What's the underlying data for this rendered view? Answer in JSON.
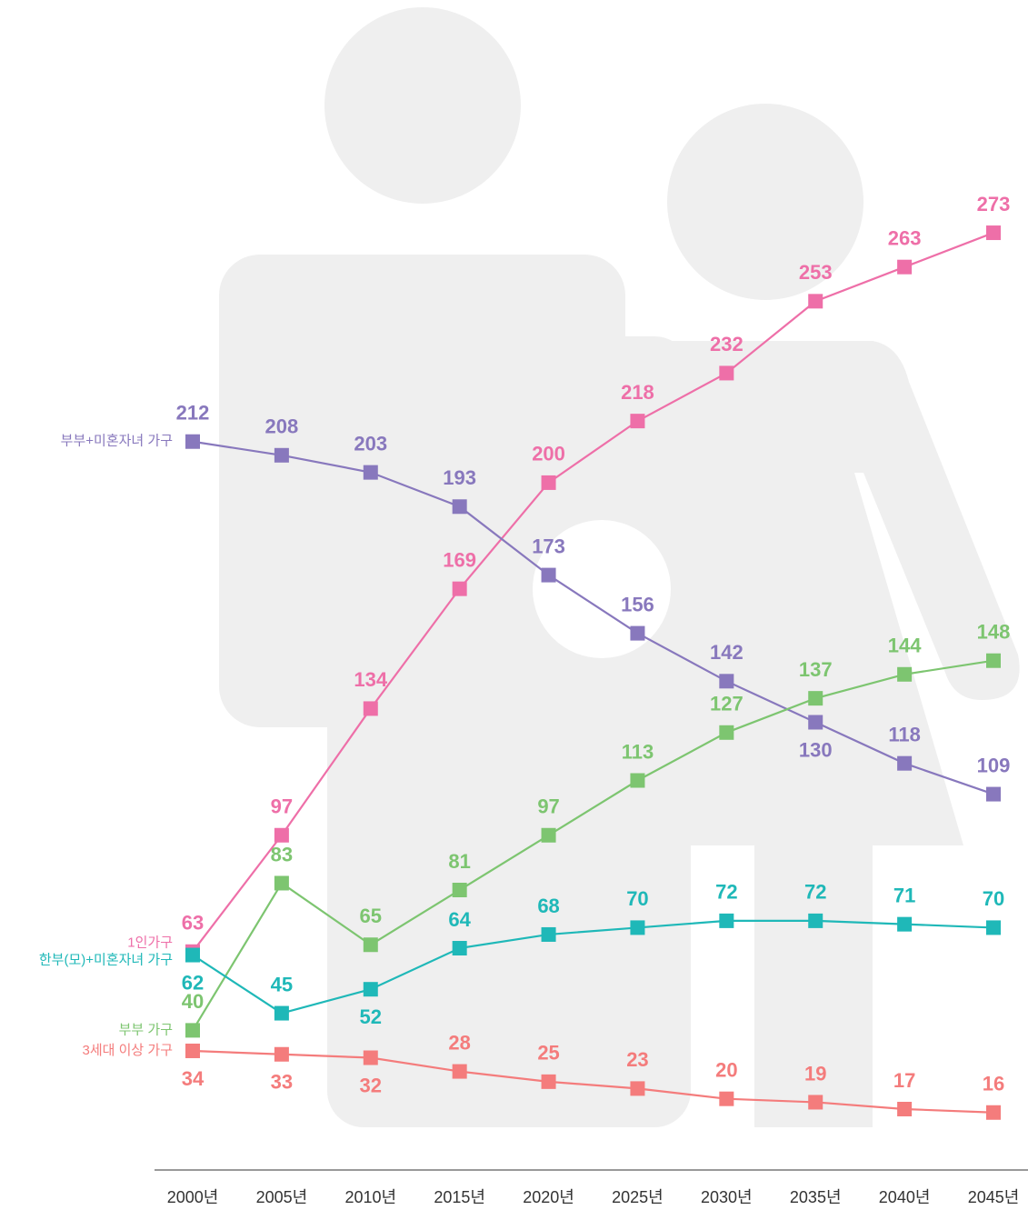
{
  "chart_data": {
    "type": "line",
    "categories": [
      "2000년",
      "2005년",
      "2010년",
      "2015년",
      "2020년",
      "2025년",
      "2030년",
      "2035년",
      "2040년",
      "2045년"
    ],
    "series": [
      {
        "name": "1인가구",
        "color": "#ee6fa8",
        "values": [
          63,
          97,
          134,
          169,
          200,
          218,
          232,
          253,
          263,
          273
        ]
      },
      {
        "name": "부부+미혼자녀 가구",
        "color": "#8878bd",
        "values": [
          212,
          208,
          203,
          193,
          173,
          156,
          142,
          130,
          118,
          109
        ]
      },
      {
        "name": "부부 가구",
        "color": "#7dc570",
        "values": [
          40,
          83,
          65,
          81,
          97,
          113,
          127,
          137,
          144,
          148
        ]
      },
      {
        "name": "한부(모)+미혼자녀 가구",
        "color": "#1fb8b8",
        "values": [
          62,
          45,
          52,
          64,
          68,
          70,
          72,
          72,
          71,
          70
        ]
      },
      {
        "name": "3세대 이상 가구",
        "color": "#f47c7c",
        "values": [
          34,
          33,
          32,
          28,
          25,
          23,
          20,
          19,
          17,
          16
        ]
      }
    ],
    "ylim": [
      0,
      341
    ]
  }
}
